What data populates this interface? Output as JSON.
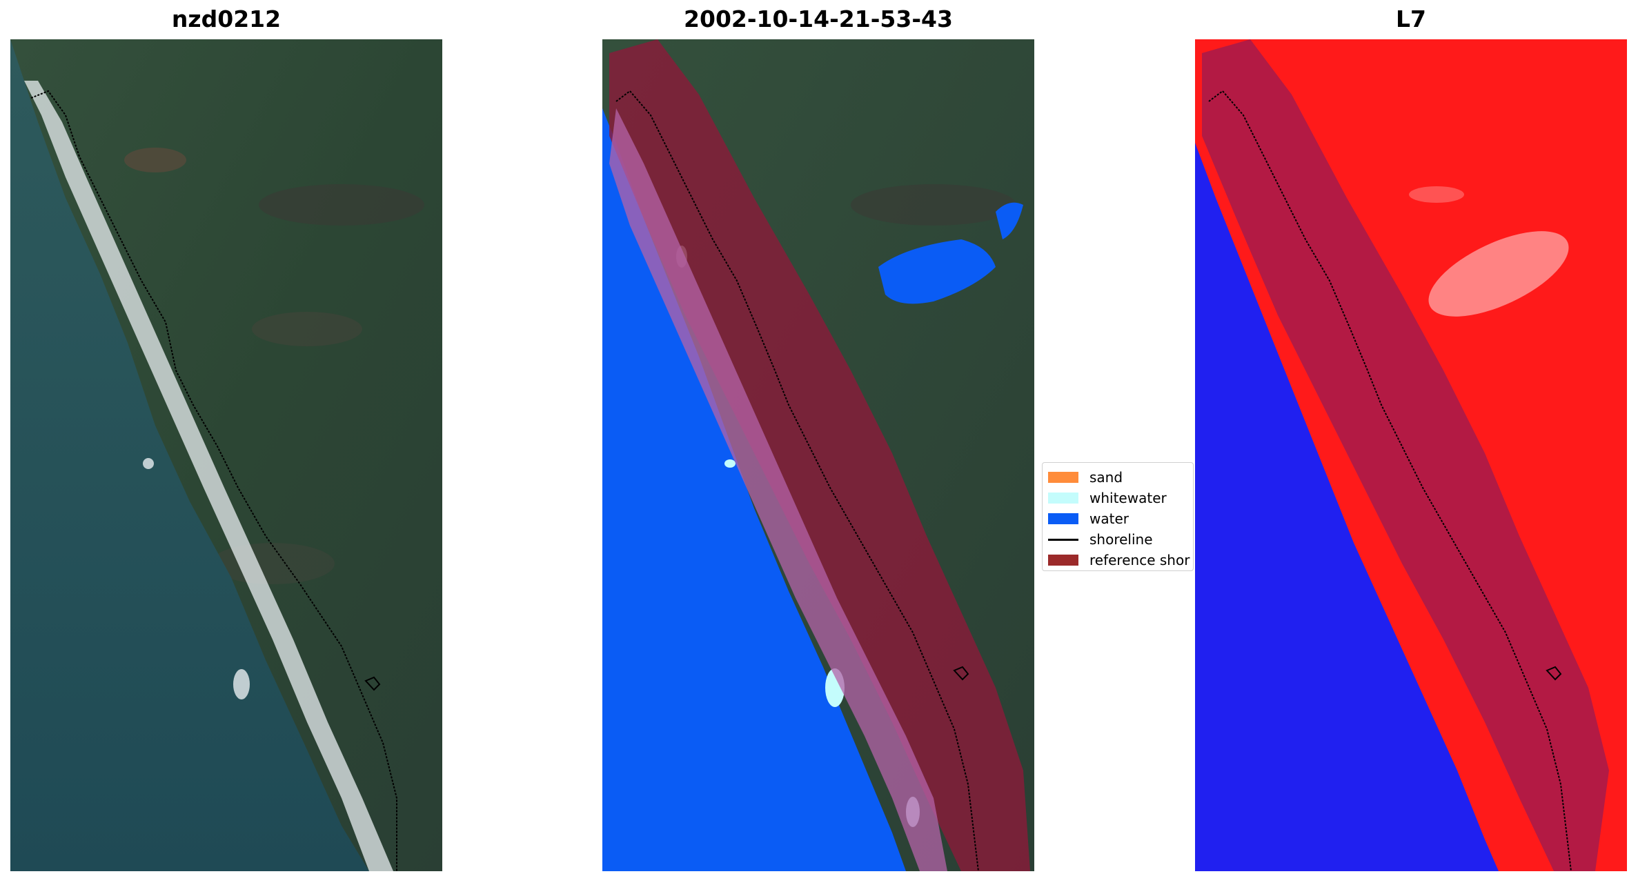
{
  "panels": [
    {
      "title": "nzd0212"
    },
    {
      "title": "2002-10-14-21-53-43"
    },
    {
      "title": "L7"
    }
  ],
  "legend": {
    "items": [
      {
        "label": "sand",
        "color": "#ff8c3a",
        "kind": "patch"
      },
      {
        "label": "whitewater",
        "color": "#c4fcfc",
        "kind": "patch"
      },
      {
        "label": "water",
        "color": "#0a5cf5",
        "kind": "patch"
      },
      {
        "label": "shoreline",
        "color": "#000000",
        "kind": "line"
      },
      {
        "label": "reference shor",
        "color": "#9b2a2a",
        "kind": "patch"
      }
    ]
  },
  "colors": {
    "land_rgb": "#2f4a38",
    "sea_rgb": "#24535a",
    "surf": "#e8eef0",
    "water_class": "#0a5cf5",
    "whitewater_class": "#c4fcfc",
    "reference_buffer": "#8b1a3a",
    "land_ndwi": "#ff1a1a",
    "water_ndwi": "#2020f0"
  }
}
